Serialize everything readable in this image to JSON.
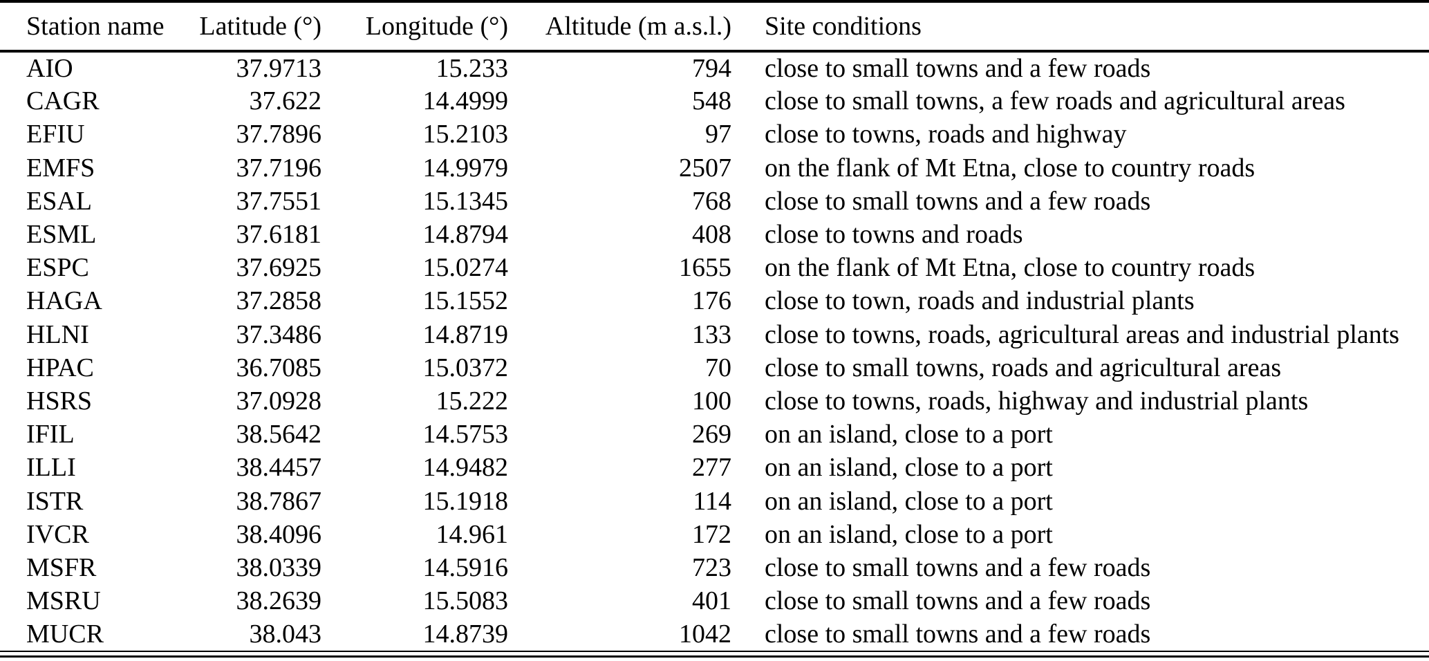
{
  "table": {
    "columns": [
      "Station name",
      "Latitude (°)",
      "Longitude (°)",
      "Altitude (m a.s.l.)",
      "Site conditions"
    ],
    "rows": [
      {
        "station": "AIO",
        "latitude": "37.9713",
        "longitude": "15.233",
        "altitude": "794",
        "conditions": "close to small towns and a few roads"
      },
      {
        "station": "CAGR",
        "latitude": "37.622",
        "longitude": "14.4999",
        "altitude": "548",
        "conditions": "close to small towns, a few roads and agricultural areas"
      },
      {
        "station": "EFIU",
        "latitude": "37.7896",
        "longitude": "15.2103",
        "altitude": "97",
        "conditions": "close to towns, roads and highway"
      },
      {
        "station": "EMFS",
        "latitude": "37.7196",
        "longitude": "14.9979",
        "altitude": "2507",
        "conditions": "on the flank of Mt Etna, close to country roads"
      },
      {
        "station": "ESAL",
        "latitude": "37.7551",
        "longitude": "15.1345",
        "altitude": "768",
        "conditions": "close to small towns and a few roads"
      },
      {
        "station": "ESML",
        "latitude": "37.6181",
        "longitude": "14.8794",
        "altitude": "408",
        "conditions": "close to towns and roads"
      },
      {
        "station": "ESPC",
        "latitude": "37.6925",
        "longitude": "15.0274",
        "altitude": "1655",
        "conditions": "on the flank of Mt Etna, close to country roads"
      },
      {
        "station": "HAGA",
        "latitude": "37.2858",
        "longitude": "15.1552",
        "altitude": "176",
        "conditions": "close to town, roads and industrial plants"
      },
      {
        "station": "HLNI",
        "latitude": "37.3486",
        "longitude": "14.8719",
        "altitude": "133",
        "conditions": "close to towns, roads, agricultural areas and industrial plants"
      },
      {
        "station": "HPAC",
        "latitude": "36.7085",
        "longitude": "15.0372",
        "altitude": "70",
        "conditions": "close to small towns, roads and agricultural areas"
      },
      {
        "station": "HSRS",
        "latitude": "37.0928",
        "longitude": "15.222",
        "altitude": "100",
        "conditions": "close to towns, roads, highway and industrial plants"
      },
      {
        "station": "IFIL",
        "latitude": "38.5642",
        "longitude": "14.5753",
        "altitude": "269",
        "conditions": "on an island, close to a port"
      },
      {
        "station": "ILLI",
        "latitude": "38.4457",
        "longitude": "14.9482",
        "altitude": "277",
        "conditions": "on an island, close to a port"
      },
      {
        "station": "ISTR",
        "latitude": "38.7867",
        "longitude": "15.1918",
        "altitude": "114",
        "conditions": "on an island, close to a port"
      },
      {
        "station": "IVCR",
        "latitude": "38.4096",
        "longitude": "14.961",
        "altitude": "172",
        "conditions": "on an island, close to a port"
      },
      {
        "station": "MSFR",
        "latitude": "38.0339",
        "longitude": "14.5916",
        "altitude": "723",
        "conditions": "close to small towns and a few roads"
      },
      {
        "station": "MSRU",
        "latitude": "38.2639",
        "longitude": "15.5083",
        "altitude": "401",
        "conditions": "close to small towns and a few roads"
      },
      {
        "station": "MUCR",
        "latitude": "38.043",
        "longitude": "14.8739",
        "altitude": "1042",
        "conditions": "close to small towns and a few roads"
      }
    ]
  }
}
